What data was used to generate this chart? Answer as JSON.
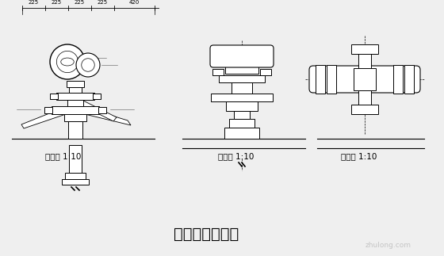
{
  "bg_color": "#efefef",
  "line_color": "#000000",
  "title": "柱头科斗拱详图",
  "title_fontsize": 14,
  "label1": "剖面图 1:10",
  "label2": "立面图 1:10",
  "label3": "平面图 1:10",
  "label_fontsize": 7.5,
  "dim_labels": [
    "225",
    "225",
    "225",
    "225",
    "420"
  ],
  "watermark": "zhulong.com",
  "fig_width": 5.6,
  "fig_height": 3.23,
  "dpi": 100
}
